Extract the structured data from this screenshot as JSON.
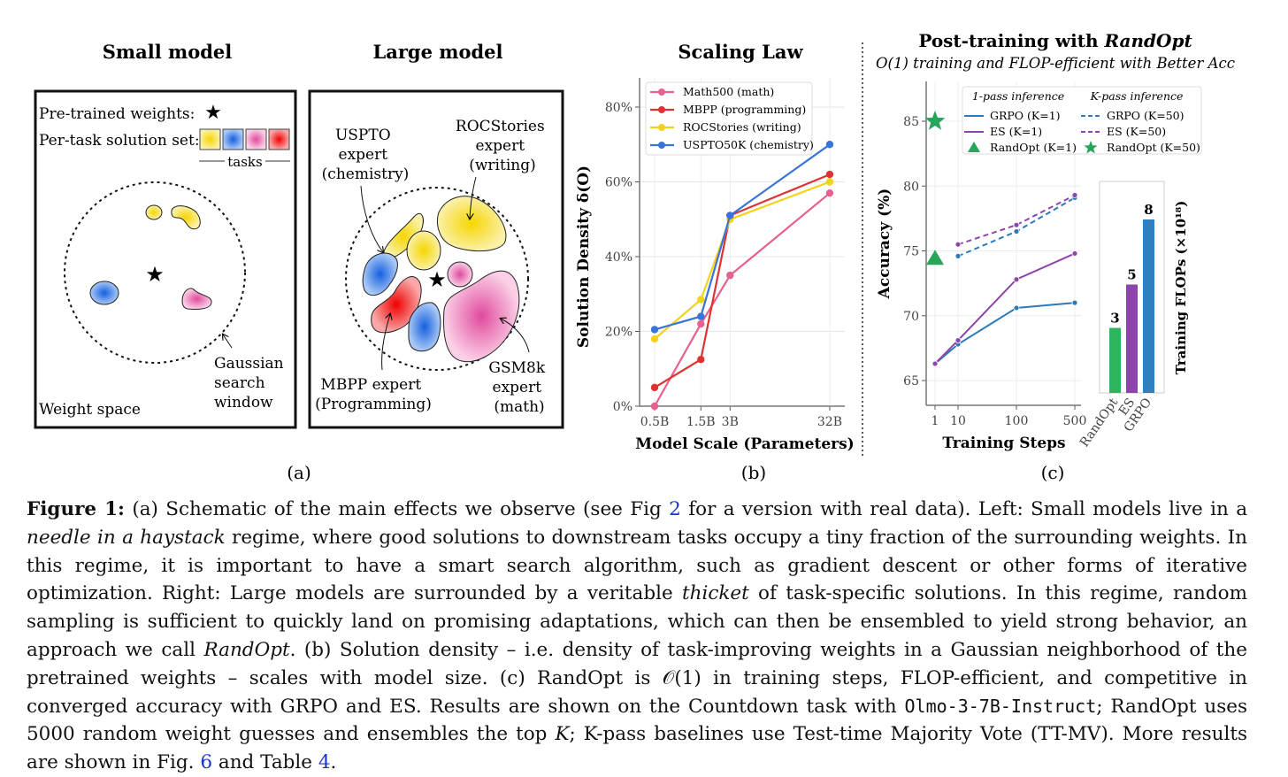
{
  "panel_a": {
    "small_title": "Small model",
    "large_title": "Large model",
    "pretrained_label": "Pre-trained weights:",
    "solution_set_label": "Per-task solution set:",
    "tasks_label": "tasks",
    "weight_space_label": "Weight space",
    "gaussian_label": [
      "Gaussian",
      "search",
      "window"
    ],
    "uspto_label": [
      "USPTO",
      "expert",
      "(chemistry)"
    ],
    "rocstories_label": [
      "ROCStories",
      "expert",
      "(writing)"
    ],
    "mbpp_label": [
      "MBPP expert",
      "(Programming)"
    ],
    "gsm8k_label": [
      "GSM8k",
      "expert",
      "(math)"
    ],
    "sub_label": "(a)",
    "colors": {
      "yellow": "#f5dd2a",
      "blue": "#2a6fe0",
      "pink": "#e85aa5",
      "red": "#ee1c1c"
    }
  },
  "panel_b": {
    "sub_label": "(b)"
  },
  "panel_c": {
    "sub_label": "(c)"
  },
  "chart_data": [
    {
      "type": "line",
      "title": "Scaling Law",
      "xlabel": "Model Scale (Parameters)",
      "ylabel": "Solution Density δ(O)",
      "x": [
        0.5,
        1.5,
        3,
        32
      ],
      "x_tick_labels": [
        "0.5B",
        "1.5B",
        "3B",
        "32B"
      ],
      "xscale": "log",
      "y_ticks": [
        "0%",
        "20%",
        "40%",
        "60%",
        "80%"
      ],
      "y_tick_values": [
        0,
        20,
        40,
        60,
        80
      ],
      "ylim": [
        0,
        88
      ],
      "grid": true,
      "legend_position": "top-left",
      "series": [
        {
          "name": "Math500 (math)",
          "color": "#e8608f",
          "values": [
            0,
            22,
            35,
            57
          ]
        },
        {
          "name": "MBPP (programming)",
          "color": "#dd3333",
          "values": [
            5,
            12.5,
            51,
            62
          ]
        },
        {
          "name": "ROCStories (writing)",
          "color": "#f5d21a",
          "values": [
            18,
            28.5,
            50,
            60
          ]
        },
        {
          "name": "USPTO50K (chemistry)",
          "color": "#3a73d9",
          "values": [
            20.5,
            24,
            51,
            70
          ]
        }
      ]
    },
    {
      "type": "line",
      "title": "Post-training with RandOpt",
      "title_plain": "Post-training with ",
      "title_italic": "RandOpt",
      "subtitle": "O(1) training and FLOP-efficient with Better Acc",
      "xlabel": "Training Steps",
      "ylabel": "Accuracy (%)",
      "x_ticks": [
        1,
        10,
        100,
        500
      ],
      "y_ticks": [
        65,
        70,
        75,
        80,
        85
      ],
      "ylim": [
        63,
        88
      ],
      "grid": true,
      "legend_position": "top-right",
      "legend_headers": [
        "1-pass inference",
        "K-pass inference"
      ],
      "series": [
        {
          "name": "GRPO (K=1)",
          "color": "#2b7bba",
          "style": "solid",
          "x": [
            1,
            10,
            100,
            500
          ],
          "values": [
            66.3,
            67.8,
            70.6,
            71.0
          ]
        },
        {
          "name": "ES (K=1)",
          "color": "#8e44ad",
          "style": "solid",
          "x": [
            1,
            10,
            100,
            500
          ],
          "values": [
            66.3,
            68.1,
            72.8,
            74.8
          ]
        },
        {
          "name": "RandOpt (K=1)",
          "color": "#27a55a",
          "style": "triangle",
          "x": [
            1
          ],
          "values": [
            74.4
          ]
        },
        {
          "name": "GRPO (K=50)",
          "color": "#2b7bba",
          "style": "dashed",
          "x": [
            10,
            100,
            500
          ],
          "values": [
            74.6,
            76.5,
            79.1
          ]
        },
        {
          "name": "ES (K=50)",
          "color": "#8e44ad",
          "style": "dashed",
          "x": [
            10,
            100,
            500
          ],
          "values": [
            75.5,
            77.0,
            79.3
          ]
        },
        {
          "name": "RandOpt (K=50)",
          "color": "#27a55a",
          "style": "star",
          "x": [
            1
          ],
          "values": [
            85.0
          ]
        }
      ]
    },
    {
      "type": "bar",
      "ylabel": "Training FLOPs (×10¹⁸)",
      "categories": [
        "RandOpt",
        "ES",
        "GRPO"
      ],
      "values": [
        3,
        5,
        8
      ],
      "colors": [
        "#2eb35f",
        "#8e44ad",
        "#2f80c0"
      ]
    }
  ],
  "caption": {
    "label": "Figure 1:",
    "t1": " (a) Schematic of the main effects we observe (see Fig ",
    "ref1": "2",
    "t2": " for a version with real data). Left: Small models live in a ",
    "i1": "needle in a haystack",
    "t3": " regime, where good solutions to downstream tasks occupy a tiny fraction of the surrounding weights. In this regime, it is important to have a smart search algorithm, such as gradient descent or other forms of iterative optimization. Right: Large models are surrounded by a veritable ",
    "i2": "thicket",
    "t4": " of task-specific solutions. In this regime, random sampling is sufficient to quickly land on promising adaptations, which can then be ensembled to yield strong behavior, an approach we call ",
    "i3": "RandOpt",
    "t5": ". (b) Solution density – i.e. density of task-improving weights in a Gaussian neighborhood of the pretrained weights – scales with model size. (c) RandOpt is 𝒪(1) in training steps, FLOP-efficient, and competitive in converged accuracy with GRPO and ES. Results are shown on the Countdown task with ",
    "code": "Olmo-3-7B-Instruct",
    "t6": "; RandOpt uses 5000 random weight guesses and ensembles the top ",
    "i4": "K",
    "t7": "; K-pass baselines use Test-time Majority Vote (TT-MV). More results are shown in Fig. ",
    "ref2": "6",
    "t8": " and Table ",
    "ref3": "4",
    "t9": "."
  }
}
